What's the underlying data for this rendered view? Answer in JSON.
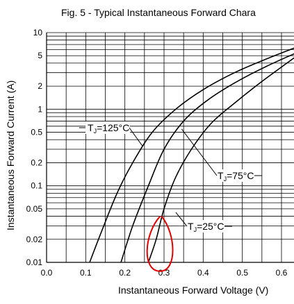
{
  "chart_data": {
    "type": "line",
    "title": "Fig. 5 - Typical Instantaneous Forward Chara",
    "xlabel": "Instantaneous Forward Voltage (V)",
    "ylabel": "Instantaneous Forward Current (A)",
    "xlim": [
      0.0,
      0.6
    ],
    "ylim": [
      0.01,
      10
    ],
    "yscale": "log",
    "grid": true,
    "x_ticks": [
      "0.0",
      "0.1",
      "0.2",
      "0.3",
      "0.4",
      "0.5",
      "0.6"
    ],
    "y_ticks": [
      {
        "value": 10,
        "label": "10"
      },
      {
        "value": 5,
        "label": "5"
      },
      {
        "value": 2,
        "label": "2"
      },
      {
        "value": 1,
        "label": "1"
      },
      {
        "value": 0.5,
        "label": "0.5"
      },
      {
        "value": 0.2,
        "label": "0.2"
      },
      {
        "value": 0.1,
        "label": "0.1"
      },
      {
        "value": 0.05,
        "label": "0.05"
      },
      {
        "value": 0.02,
        "label": "0.02"
      },
      {
        "value": 0.01,
        "label": "0.01"
      }
    ],
    "series": [
      {
        "name": "TJ=125°C",
        "label_main": "T",
        "label_sub": "J",
        "label_rest": "=125°C",
        "points": [
          [
            0.11,
            0.01
          ],
          [
            0.14,
            0.025
          ],
          [
            0.18,
            0.08
          ],
          [
            0.22,
            0.2
          ],
          [
            0.27,
            0.5
          ],
          [
            0.33,
            1.0
          ],
          [
            0.4,
            1.8
          ],
          [
            0.48,
            3.0
          ],
          [
            0.56,
            4.5
          ],
          [
            0.64,
            6.5
          ]
        ]
      },
      {
        "name": "TJ=75°C",
        "label_main": "T",
        "label_sub": "J",
        "label_rest": "=75°C",
        "points": [
          [
            0.19,
            0.01
          ],
          [
            0.22,
            0.03
          ],
          [
            0.26,
            0.1
          ],
          [
            0.3,
            0.3
          ],
          [
            0.35,
            0.7
          ],
          [
            0.41,
            1.3
          ],
          [
            0.48,
            2.2
          ],
          [
            0.56,
            3.6
          ],
          [
            0.64,
            5.5
          ]
        ]
      },
      {
        "name": "TJ=25°C",
        "label_main": "T",
        "label_sub": "J",
        "label_rest": "=25°C",
        "points": [
          [
            0.26,
            0.01
          ],
          [
            0.28,
            0.02
          ],
          [
            0.3,
            0.05
          ],
          [
            0.33,
            0.13
          ],
          [
            0.37,
            0.3
          ],
          [
            0.42,
            0.65
          ],
          [
            0.48,
            1.2
          ],
          [
            0.55,
            2.3
          ],
          [
            0.64,
            5.0
          ]
        ]
      }
    ],
    "labels": [
      {
        "series": 0,
        "anchor": [
          0.245,
          0.33
        ]
      },
      {
        "series": 1,
        "anchor": [
          0.345,
          0.55
        ]
      },
      {
        "series": 2,
        "anchor": [
          0.33,
          0.045
        ]
      }
    ],
    "annotation": {
      "type": "freehand-loop",
      "color": "#e00000",
      "x": [
        0.26,
        0.32
      ],
      "y": [
        0.008,
        0.04
      ]
    }
  }
}
